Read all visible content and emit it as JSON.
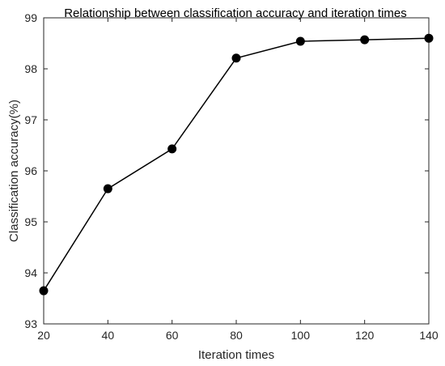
{
  "chart_data": {
    "type": "line",
    "title": "Relationship between classification accuracy and iteration times",
    "xlabel": "Iteration times",
    "ylabel": "Classification accuracy(%)",
    "xlim": [
      20,
      140
    ],
    "ylim": [
      93,
      99
    ],
    "xticks": [
      20,
      40,
      60,
      80,
      100,
      120,
      140
    ],
    "yticks": [
      93,
      94,
      95,
      96,
      97,
      98,
      99
    ],
    "grid": false,
    "series": [
      {
        "x": [
          20,
          40,
          60,
          80,
          100,
          120,
          140
        ],
        "y": [
          93.65,
          95.65,
          96.43,
          98.21,
          98.54,
          98.57,
          98.6
        ],
        "color": "#000000",
        "marker": "filled-circle"
      }
    ]
  }
}
